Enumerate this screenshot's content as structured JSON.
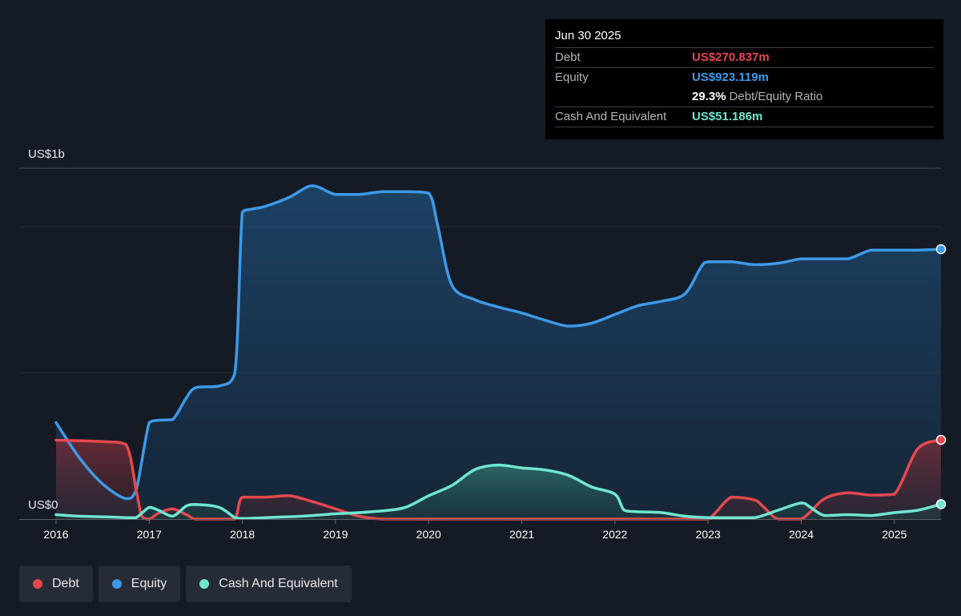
{
  "chart_data": {
    "type": "area",
    "y_axis_labels": {
      "top": "US$1b",
      "bottom": "US$0"
    },
    "ylim": [
      0,
      1200
    ],
    "xlim": [
      2016.0,
      2025.5
    ],
    "x_ticks": [
      "2016",
      "2017",
      "2018",
      "2019",
      "2020",
      "2021",
      "2022",
      "2023",
      "2024",
      "2025"
    ],
    "grid": true,
    "legend_position": "bottom-left",
    "series": [
      {
        "name": "Debt",
        "color": "#e5484d",
        "x": [
          2016.0,
          2016.5,
          2016.75,
          2016.86,
          2016.92,
          2017.0,
          2017.1,
          2017.25,
          2017.4,
          2017.5,
          2017.75,
          2017.92,
          2018.0,
          2018.25,
          2018.5,
          2018.75,
          2019.0,
          2019.25,
          2019.5,
          2019.75,
          2020.0,
          2020.5,
          2021.0,
          2021.5,
          2022.0,
          2022.5,
          2022.75,
          2023.0,
          2023.25,
          2023.5,
          2023.6,
          2023.75,
          2024.0,
          2024.25,
          2024.5,
          2024.75,
          2025.0,
          2025.25,
          2025.5
        ],
        "values": [
          270,
          265,
          255,
          100,
          10,
          0,
          20,
          35,
          15,
          0,
          0,
          0,
          75,
          75,
          80,
          60,
          35,
          10,
          0,
          0,
          0,
          0,
          0,
          0,
          0,
          0,
          0,
          0,
          75,
          65,
          40,
          0,
          0,
          70,
          90,
          82,
          85,
          240,
          271
        ]
      },
      {
        "name": "Equity",
        "color": "#3d9ae8",
        "x": [
          2016.0,
          2016.25,
          2016.5,
          2016.75,
          2016.86,
          2017.0,
          2017.1,
          2017.25,
          2017.4,
          2017.5,
          2017.75,
          2017.92,
          2018.0,
          2018.1,
          2018.25,
          2018.5,
          2018.75,
          2019.0,
          2019.25,
          2019.5,
          2019.75,
          2020.0,
          2020.1,
          2020.25,
          2020.5,
          2020.75,
          2021.0,
          2021.25,
          2021.5,
          2021.75,
          2022.0,
          2022.25,
          2022.5,
          2022.75,
          2022.92,
          2023.0,
          2023.25,
          2023.5,
          2023.75,
          2024.0,
          2024.25,
          2024.5,
          2024.75,
          2025.0,
          2025.25,
          2025.5
        ],
        "values": [
          330,
          210,
          120,
          70,
          100,
          330,
          338,
          340,
          415,
          450,
          455,
          500,
          1050,
          1060,
          1070,
          1100,
          1140,
          1110,
          1110,
          1120,
          1120,
          1115,
          1000,
          800,
          750,
          725,
          705,
          680,
          660,
          670,
          700,
          730,
          745,
          770,
          860,
          880,
          880,
          870,
          875,
          890,
          890,
          890,
          920,
          920,
          920,
          923
        ]
      },
      {
        "name": "Cash And Equivalent",
        "color": "#6ee6d0",
        "x": [
          2016.0,
          2016.25,
          2016.5,
          2016.75,
          2016.86,
          2017.0,
          2017.1,
          2017.25,
          2017.4,
          2017.5,
          2017.75,
          2017.92,
          2018.0,
          2018.25,
          2018.5,
          2018.75,
          2019.0,
          2019.25,
          2019.5,
          2019.75,
          2020.0,
          2020.25,
          2020.5,
          2020.75,
          2021.0,
          2021.25,
          2021.5,
          2021.75,
          2022.0,
          2022.1,
          2022.25,
          2022.5,
          2022.75,
          2023.0,
          2023.25,
          2023.5,
          2023.75,
          2024.0,
          2024.1,
          2024.25,
          2024.5,
          2024.75,
          2025.0,
          2025.25,
          2025.5
        ],
        "values": [
          15,
          10,
          8,
          5,
          5,
          40,
          30,
          10,
          45,
          50,
          40,
          5,
          2,
          5,
          8,
          12,
          18,
          22,
          28,
          40,
          80,
          115,
          170,
          185,
          175,
          168,
          150,
          110,
          85,
          30,
          25,
          22,
          10,
          5,
          5,
          5,
          30,
          55,
          40,
          12,
          15,
          12,
          22,
          30,
          51
        ]
      }
    ]
  },
  "tooltip": {
    "date": "Jun 30 2025",
    "debt_label": "Debt",
    "debt_value": "US$270.837m",
    "equity_label": "Equity",
    "equity_value": "US$923.119m",
    "ratio_value": "29.3%",
    "ratio_label": "Debt/Equity Ratio",
    "cash_label": "Cash And Equivalent",
    "cash_value": "US$51.186m"
  },
  "legend": [
    {
      "label": "Debt",
      "color": "#e5484d"
    },
    {
      "label": "Equity",
      "color": "#3d9ae8"
    },
    {
      "label": "Cash And Equivalent",
      "color": "#6ee6d0"
    }
  ]
}
